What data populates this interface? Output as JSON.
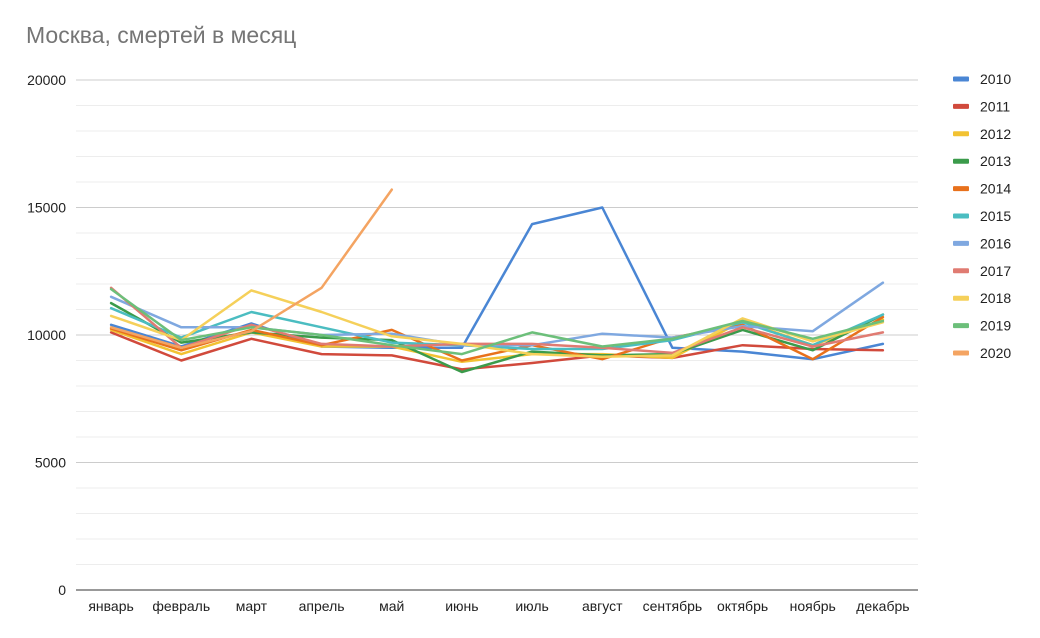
{
  "chart_data": {
    "type": "line",
    "title": "Москва, смертей в месяц",
    "xlabel": "",
    "ylabel": "",
    "ylim": [
      0,
      20000
    ],
    "yticks": [
      0,
      5000,
      10000,
      15000,
      20000
    ],
    "grid": true,
    "legend_position": "right",
    "categories": [
      "январь",
      "февраль",
      "март",
      "апрель",
      "май",
      "июнь",
      "июль",
      "август",
      "сентябрь",
      "октябрь",
      "ноябрь",
      "декабрь"
    ],
    "series": [
      {
        "name": "2010",
        "color": "#4a86d4",
        "values": [
          10400,
          9550,
          10450,
          9550,
          9500,
          9500,
          14350,
          15000,
          9500,
          9350,
          9050,
          9650
        ]
      },
      {
        "name": "2011",
        "color": "#d14a3c",
        "values": [
          10100,
          9000,
          9850,
          9250,
          9200,
          8650,
          8900,
          9200,
          9100,
          9600,
          9450,
          9400
        ]
      },
      {
        "name": "2012",
        "color": "#f2c232",
        "values": [
          10200,
          9250,
          10100,
          9550,
          9550,
          8950,
          9250,
          9250,
          9100,
          10550,
          9600,
          10600
        ]
      },
      {
        "name": "2013",
        "color": "#3b9b4b",
        "values": [
          11250,
          9700,
          10100,
          9900,
          9800,
          8550,
          9350,
          9200,
          9250,
          10200,
          9400,
          10800
        ]
      },
      {
        "name": "2014",
        "color": "#e8711c",
        "values": [
          10250,
          9400,
          10200,
          9600,
          10200,
          9000,
          9600,
          9050,
          9900,
          10400,
          9050,
          10700
        ]
      },
      {
        "name": "2015",
        "color": "#4bbdc1",
        "values": [
          11050,
          9900,
          10900,
          10300,
          9700,
          9600,
          9450,
          9450,
          9800,
          10500,
          9600,
          10800
        ]
      },
      {
        "name": "2016",
        "color": "#7fa8e0",
        "values": [
          11500,
          10300,
          10300,
          10000,
          10050,
          9600,
          9600,
          10050,
          9900,
          10350,
          10150,
          12050
        ]
      },
      {
        "name": "2017",
        "color": "#e07b72",
        "values": [
          11850,
          9500,
          10400,
          9650,
          9550,
          9650,
          9650,
          9500,
          9300,
          10300,
          9550,
          10100
        ]
      },
      {
        "name": "2018",
        "color": "#f5d05a",
        "values": [
          10750,
          9800,
          11750,
          10900,
          9950,
          9650,
          9250,
          9150,
          9200,
          10650,
          9750,
          10500
        ]
      },
      {
        "name": "2019",
        "color": "#6cbf7a",
        "values": [
          11800,
          9800,
          10300,
          10000,
          9600,
          9250,
          10100,
          9550,
          9850,
          10550,
          9850,
          10550
        ]
      },
      {
        "name": "2020",
        "color": "#f4a462",
        "values": [
          10300,
          9500,
          10150,
          11850,
          15700,
          null,
          null,
          null,
          null,
          null,
          null,
          null
        ]
      }
    ]
  }
}
